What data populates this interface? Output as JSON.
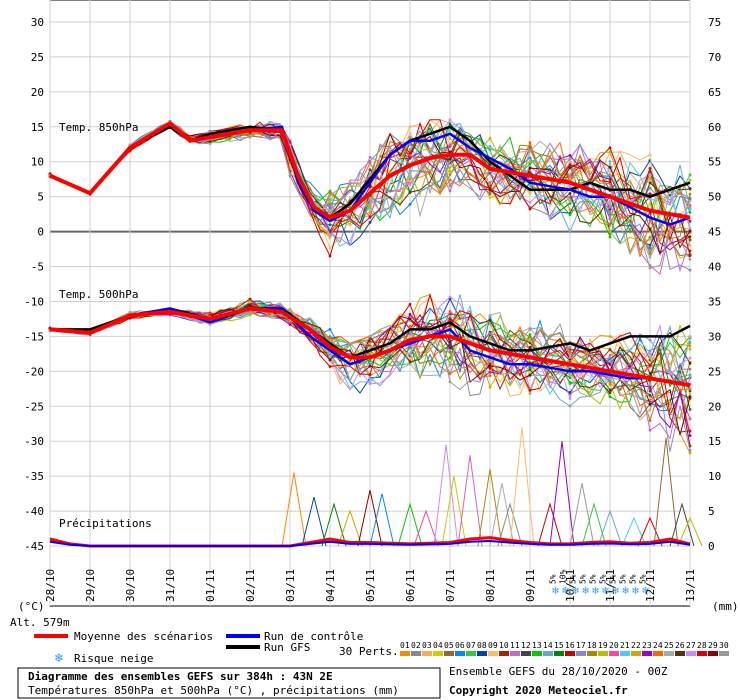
{
  "title": "Diagramme des ensembles GEFS sur 384h : 43N 2E",
  "subtitle": "Températures 850hPa et 500hPa (°C) , précipitations (mm)",
  "run_label": "Ensemble GEFS du 28/10/2020 - 00Z",
  "copyright": "Copyright 2020 Meteociel.fr",
  "altitude": "Alt. 579m",
  "left_unit": "(°C)",
  "right_unit": "(mm)",
  "panel_labels": {
    "t850": "Temp. 850hPa",
    "t500": "Temp. 500hPa",
    "precip": "Précipitations"
  },
  "legend": {
    "mean": "Moyenne des scénarios",
    "control": "Run de contrôle",
    "gfs": "Run GFS",
    "snow": "Risque neige",
    "perts": "30 Perts."
  },
  "pert_numbers": [
    "01",
    "02",
    "03",
    "04",
    "05",
    "06",
    "07",
    "08",
    "09",
    "10",
    "11",
    "12",
    "13",
    "14",
    "15",
    "16",
    "17",
    "18",
    "19",
    "20",
    "21",
    "22",
    "23",
    "24",
    "25",
    "26",
    "27",
    "28",
    "29",
    "30"
  ],
  "colors": {
    "mean": "#ff0000",
    "control": "#0000ff",
    "gfs": "#000000",
    "perts": [
      "#ff8800",
      "#888888",
      "#ffaa55",
      "#cccc00",
      "#996633",
      "#0088ff",
      "#33cc33",
      "#0044aa",
      "#ffbb66",
      "#aa2200",
      "#cc66cc",
      "#444444",
      "#00cc00",
      "#66aacc",
      "#008800",
      "#cc0000",
      "#8888cc",
      "#aa8800",
      "#bbbb00",
      "#ff44aa",
      "#44ccff",
      "#ccaa00",
      "#9900cc",
      "#ff6600",
      "#aaaaaa",
      "#553300",
      "#cc88ff",
      "#dd0000",
      "#880000",
      "#999999"
    ]
  },
  "chart_data": {
    "type": "line",
    "x_labels": [
      "28/10",
      "29/10",
      "30/10",
      "31/10",
      "01/11",
      "02/11",
      "03/11",
      "04/11",
      "05/11",
      "06/11",
      "07/11",
      "08/11",
      "09/11",
      "10/11",
      "11/11",
      "12/11",
      "13/11"
    ],
    "left_axis": {
      "ylim": [
        -45,
        30
      ],
      "ticks": [
        30,
        25,
        20,
        15,
        10,
        5,
        0,
        -5,
        -10,
        -15,
        -20,
        -25,
        -30,
        -35,
        -40,
        -45
      ]
    },
    "right_axis": {
      "ylim": [
        0,
        75
      ],
      "ticks": [
        75,
        70,
        65,
        60,
        55,
        50,
        45,
        40,
        35,
        30,
        25,
        20,
        15,
        10,
        5,
        0
      ]
    },
    "snow_risk": [
      {
        "x": 12.56,
        "label": "5%"
      },
      {
        "x": 12.81,
        "label": "10%"
      },
      {
        "x": 13.06,
        "label": "5%"
      },
      {
        "x": 13.31,
        "label": "5%"
      },
      {
        "x": 13.56,
        "label": "5%"
      },
      {
        "x": 13.81,
        "label": "5%"
      },
      {
        "x": 14.06,
        "label": "5%"
      },
      {
        "x": 14.31,
        "label": "5%"
      },
      {
        "x": 14.56,
        "label": "5%"
      },
      {
        "x": 14.81,
        "label": "5%"
      }
    ],
    "t850": {
      "mean": [
        [
          0,
          8
        ],
        [
          1,
          5.5
        ],
        [
          2,
          12
        ],
        [
          3,
          15.5
        ],
        [
          3.5,
          13
        ],
        [
          4,
          13.5
        ],
        [
          5,
          14.5
        ],
        [
          5.8,
          14.5
        ],
        [
          6.2,
          8
        ],
        [
          6.6,
          3.5
        ],
        [
          7,
          2
        ],
        [
          7.5,
          3
        ],
        [
          8,
          5.5
        ],
        [
          8.5,
          8
        ],
        [
          9,
          9.5
        ],
        [
          9.5,
          10.5
        ],
        [
          10,
          11
        ],
        [
          10.5,
          11
        ],
        [
          11,
          9
        ],
        [
          11.5,
          8.5
        ],
        [
          12,
          8
        ],
        [
          12.5,
          7.5
        ],
        [
          13,
          7
        ],
        [
          13.5,
          6
        ],
        [
          14,
          5
        ],
        [
          14.5,
          4
        ],
        [
          15,
          3
        ],
        [
          15.5,
          2.5
        ],
        [
          16,
          2
        ]
      ],
      "control": [
        [
          0,
          8
        ],
        [
          1,
          5.5
        ],
        [
          2,
          12
        ],
        [
          3,
          15.5
        ],
        [
          3.5,
          13
        ],
        [
          4,
          13.5
        ],
        [
          5,
          14.5
        ],
        [
          5.8,
          15
        ],
        [
          6.2,
          7
        ],
        [
          6.6,
          3
        ],
        [
          7,
          1.5
        ],
        [
          7.5,
          3
        ],
        [
          8,
          7
        ],
        [
          8.5,
          11
        ],
        [
          9,
          13
        ],
        [
          9.5,
          13
        ],
        [
          10,
          14
        ],
        [
          10.5,
          12
        ],
        [
          11,
          10.5
        ],
        [
          11.5,
          9
        ],
        [
          12,
          7
        ],
        [
          12.5,
          6.5
        ],
        [
          13,
          6
        ],
        [
          13.5,
          5
        ],
        [
          14,
          5
        ],
        [
          14.5,
          3.5
        ],
        [
          15,
          2
        ],
        [
          15.5,
          1
        ],
        [
          16,
          2
        ]
      ],
      "gfs": [
        [
          0,
          8
        ],
        [
          1,
          5.5
        ],
        [
          2,
          12
        ],
        [
          3,
          15
        ],
        [
          3.5,
          13
        ],
        [
          4,
          14
        ],
        [
          5,
          15
        ],
        [
          5.8,
          14.5
        ],
        [
          6.2,
          7.5
        ],
        [
          6.6,
          3
        ],
        [
          7,
          2
        ],
        [
          7.5,
          4
        ],
        [
          8,
          7.5
        ],
        [
          8.5,
          11
        ],
        [
          9,
          13
        ],
        [
          9.5,
          14
        ],
        [
          10,
          15
        ],
        [
          10.5,
          13
        ],
        [
          11,
          10
        ],
        [
          11.5,
          8
        ],
        [
          12,
          6
        ],
        [
          12.5,
          6
        ],
        [
          13,
          6
        ],
        [
          13.5,
          7
        ],
        [
          14,
          6
        ],
        [
          14.5,
          6
        ],
        [
          15,
          5
        ],
        [
          15.5,
          6
        ],
        [
          16,
          7
        ]
      ],
      "spread_low": [
        [
          0,
          7
        ],
        [
          1,
          5
        ],
        [
          2,
          11
        ],
        [
          3,
          14
        ],
        [
          4,
          12
        ],
        [
          5,
          13
        ],
        [
          5.8,
          13
        ],
        [
          6,
          6
        ],
        [
          6.5,
          1
        ],
        [
          7,
          -3.5
        ],
        [
          7.5,
          -2
        ],
        [
          8,
          0
        ],
        [
          8.5,
          -3
        ],
        [
          9,
          -1
        ],
        [
          9.5,
          1
        ],
        [
          10,
          3
        ],
        [
          10.5,
          5
        ],
        [
          11,
          3
        ],
        [
          11.5,
          2
        ],
        [
          12,
          1
        ],
        [
          12.5,
          0
        ],
        [
          13,
          -1
        ],
        [
          13.5,
          -2
        ],
        [
          14,
          -5
        ],
        [
          14.5,
          -7
        ],
        [
          15,
          -8
        ],
        [
          15.5,
          -7
        ],
        [
          16,
          -8
        ]
      ],
      "spread_high": [
        [
          0,
          9
        ],
        [
          1,
          6
        ],
        [
          2,
          13
        ],
        [
          3,
          16
        ],
        [
          4,
          15
        ],
        [
          5,
          15.5
        ],
        [
          5.8,
          16
        ],
        [
          6.2,
          10
        ],
        [
          6.6,
          6
        ],
        [
          7,
          8
        ],
        [
          7.5,
          10
        ],
        [
          8,
          13
        ],
        [
          8.5,
          14
        ],
        [
          9,
          15
        ],
        [
          9.5,
          16
        ],
        [
          10,
          16
        ],
        [
          10.5,
          16
        ],
        [
          11,
          15
        ],
        [
          11.5,
          14
        ],
        [
          12,
          14
        ],
        [
          12.5,
          13
        ],
        [
          13,
          13
        ],
        [
          13.5,
          12
        ],
        [
          14,
          12
        ],
        [
          14.5,
          11
        ],
        [
          15,
          11
        ],
        [
          15.5,
          11
        ],
        [
          16,
          11
        ]
      ]
    },
    "t500": {
      "mean": [
        [
          0,
          -14
        ],
        [
          1,
          -14.5
        ],
        [
          2,
          -12
        ],
        [
          3,
          -11.5
        ],
        [
          4,
          -12.5
        ],
        [
          5,
          -11
        ],
        [
          5.8,
          -11.5
        ],
        [
          6.5,
          -14
        ],
        [
          7,
          -16.5
        ],
        [
          7.5,
          -18
        ],
        [
          8,
          -18
        ],
        [
          8.5,
          -17
        ],
        [
          9,
          -15.5
        ],
        [
          9.5,
          -15
        ],
        [
          10,
          -15
        ],
        [
          10.5,
          -16
        ],
        [
          11,
          -17
        ],
        [
          11.5,
          -17.5
        ],
        [
          12,
          -18
        ],
        [
          12.5,
          -18.5
        ],
        [
          13,
          -19
        ],
        [
          13.5,
          -19.5
        ],
        [
          14,
          -20
        ],
        [
          14.5,
          -20.5
        ],
        [
          15,
          -21
        ],
        [
          15.5,
          -21.5
        ],
        [
          16,
          -22
        ]
      ],
      "control": [
        [
          0,
          -14
        ],
        [
          1,
          -14.5
        ],
        [
          2,
          -12
        ],
        [
          3,
          -11
        ],
        [
          4,
          -13
        ],
        [
          5,
          -11
        ],
        [
          5.8,
          -11
        ],
        [
          6.5,
          -15
        ],
        [
          7,
          -17
        ],
        [
          7.5,
          -19
        ],
        [
          8,
          -18
        ],
        [
          8.5,
          -17
        ],
        [
          9,
          -16
        ],
        [
          9.5,
          -15
        ],
        [
          10,
          -14
        ],
        [
          10.5,
          -17
        ],
        [
          11,
          -18
        ],
        [
          11.5,
          -19
        ],
        [
          12,
          -19
        ],
        [
          12.5,
          -19.5
        ],
        [
          13,
          -20
        ],
        [
          13.5,
          -20
        ],
        [
          14,
          -20.5
        ],
        [
          14.5,
          -21
        ],
        [
          15,
          -21
        ],
        [
          15.5,
          -21.5
        ],
        [
          16,
          -22
        ]
      ],
      "gfs": [
        [
          0,
          -14
        ],
        [
          1,
          -14
        ],
        [
          2,
          -12
        ],
        [
          3,
          -11
        ],
        [
          4,
          -12.5
        ],
        [
          5,
          -11
        ],
        [
          5.8,
          -11
        ],
        [
          6.5,
          -14
        ],
        [
          7,
          -16
        ],
        [
          7.5,
          -18
        ],
        [
          8,
          -17
        ],
        [
          8.5,
          -16
        ],
        [
          9,
          -14
        ],
        [
          9.5,
          -14
        ],
        [
          10,
          -13
        ],
        [
          10.5,
          -15
        ],
        [
          11,
          -16
        ],
        [
          11.5,
          -17
        ],
        [
          12,
          -17
        ],
        [
          12.5,
          -16.5
        ],
        [
          13,
          -16
        ],
        [
          13.5,
          -17
        ],
        [
          14,
          -16
        ],
        [
          14.5,
          -15
        ],
        [
          15,
          -15
        ],
        [
          15.5,
          -15
        ],
        [
          16,
          -13.5
        ]
      ],
      "spread_low": [
        [
          0,
          -15
        ],
        [
          1,
          -15.5
        ],
        [
          2,
          -13
        ],
        [
          3,
          -12
        ],
        [
          4,
          -14
        ],
        [
          5,
          -12
        ],
        [
          5.8,
          -12.5
        ],
        [
          6.5,
          -16
        ],
        [
          7,
          -20
        ],
        [
          7.5,
          -28
        ],
        [
          8,
          -26
        ],
        [
          8.5,
          -23
        ],
        [
          9,
          -22
        ],
        [
          9.5,
          -23
        ],
        [
          10,
          -24
        ],
        [
          10.5,
          -25
        ],
        [
          11,
          -24
        ],
        [
          11.5,
          -24
        ],
        [
          12,
          -24
        ],
        [
          12.5,
          -25
        ],
        [
          13,
          -25
        ],
        [
          13.5,
          -25
        ],
        [
          14,
          -26
        ],
        [
          14.5,
          -27
        ],
        [
          15,
          -29
        ],
        [
          15.5,
          -32
        ],
        [
          16,
          -34
        ]
      ],
      "spread_high": [
        [
          0,
          -13
        ],
        [
          1,
          -13.5
        ],
        [
          2,
          -11
        ],
        [
          3,
          -10.5
        ],
        [
          4,
          -11
        ],
        [
          5,
          -9
        ],
        [
          5.8,
          -9.5
        ],
        [
          6.5,
          -12
        ],
        [
          7,
          -14
        ],
        [
          7.5,
          -16
        ],
        [
          8,
          -15
        ],
        [
          8.5,
          -13
        ],
        [
          9,
          -10
        ],
        [
          9.5,
          -9
        ],
        [
          10,
          -9
        ],
        [
          10.5,
          -9
        ],
        [
          11,
          -10
        ],
        [
          11.5,
          -11
        ],
        [
          12,
          -12
        ],
        [
          12.5,
          -13
        ],
        [
          13,
          -13
        ],
        [
          13.5,
          -14
        ],
        [
          14,
          -15
        ],
        [
          14.5,
          -14
        ],
        [
          15,
          -13
        ],
        [
          15.5,
          -12
        ],
        [
          16,
          -12
        ]
      ]
    },
    "precip": {
      "mean": [
        [
          0,
          1
        ],
        [
          0.5,
          0.3
        ],
        [
          1,
          0
        ],
        [
          6,
          0
        ],
        [
          6.5,
          0.5
        ],
        [
          7,
          1
        ],
        [
          7.5,
          0.5
        ],
        [
          8,
          0.5
        ],
        [
          9,
          0.3
        ],
        [
          10,
          0.5
        ],
        [
          10.5,
          1
        ],
        [
          11,
          1.2
        ],
        [
          11.5,
          0.8
        ],
        [
          12,
          0.5
        ],
        [
          12.5,
          0.3
        ],
        [
          13,
          0.3
        ],
        [
          13.5,
          0.5
        ],
        [
          14,
          0.6
        ],
        [
          14.5,
          0.4
        ],
        [
          15,
          0.5
        ],
        [
          15.5,
          1
        ],
        [
          16,
          0.3
        ]
      ],
      "peaks": [
        [
          6.1,
          10.5
        ],
        [
          6.6,
          7
        ],
        [
          7.1,
          6
        ],
        [
          7.5,
          5
        ],
        [
          8.0,
          8
        ],
        [
          8.3,
          7.5
        ],
        [
          9.0,
          6
        ],
        [
          9.4,
          5
        ],
        [
          9.9,
          14.5
        ],
        [
          10.1,
          10
        ],
        [
          10.5,
          13
        ],
        [
          11.0,
          11
        ],
        [
          11.3,
          9
        ],
        [
          11.5,
          6
        ],
        [
          11.8,
          17
        ],
        [
          12.5,
          6
        ],
        [
          12.8,
          15
        ],
        [
          13.3,
          9
        ],
        [
          13.6,
          6
        ],
        [
          14.0,
          5
        ],
        [
          14.6,
          4
        ],
        [
          15.0,
          4
        ],
        [
          15.4,
          15.5
        ],
        [
          15.8,
          6
        ],
        [
          16.0,
          4
        ]
      ]
    }
  }
}
